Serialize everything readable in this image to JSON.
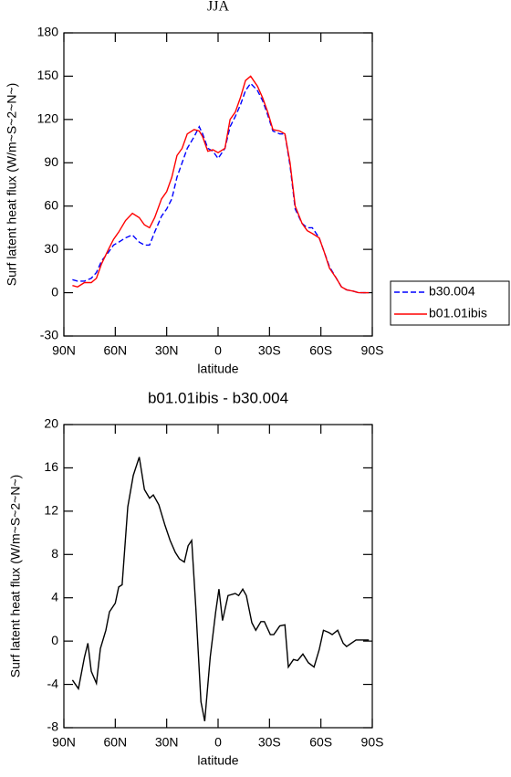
{
  "chart_data": [
    {
      "type": "line",
      "title": "JJA",
      "xlabel": "latitude",
      "ylabel": "Surf latent heat flux (W/m~S~2~N~)",
      "xlim": [
        90,
        -90
      ],
      "xticks": [
        {
          "value": 90,
          "label": "90N"
        },
        {
          "value": 60,
          "label": "60N"
        },
        {
          "value": 30,
          "label": "30N"
        },
        0,
        {
          "value": -30,
          "label": "30S"
        },
        {
          "value": -60,
          "label": "60S"
        },
        {
          "value": -90,
          "label": "90S"
        }
      ],
      "ylim": [
        -30,
        180
      ],
      "yticks": [
        -30,
        0,
        30,
        60,
        90,
        120,
        150,
        180
      ],
      "legend": "outside-right",
      "x": [
        85,
        82,
        78,
        74,
        71,
        68,
        64,
        61,
        58,
        54,
        50,
        46,
        43,
        40,
        37,
        33,
        30,
        27,
        24,
        21,
        18,
        14,
        11,
        9,
        6,
        3,
        0,
        -4,
        -7,
        -10,
        -13,
        -16,
        -19,
        -23,
        -26,
        -29,
        -32,
        -36,
        -39,
        -42,
        -45,
        -49,
        -52,
        -55,
        -59,
        -62,
        -65,
        -69,
        -72,
        -75,
        -79,
        -82,
        -86,
        -88
      ],
      "series": [
        {
          "name": "b30.004",
          "color": "#0000ff",
          "dash": "dashed",
          "values": [
            9,
            8,
            8,
            10,
            14,
            22,
            28,
            33,
            35,
            38,
            40,
            35,
            33,
            33,
            42,
            53,
            58,
            65,
            80,
            90,
            100,
            108,
            115,
            110,
            100,
            98,
            93,
            100,
            115,
            122,
            130,
            140,
            145,
            140,
            133,
            123,
            112,
            110,
            110,
            88,
            58,
            48,
            45,
            45,
            38,
            28,
            18,
            10,
            4,
            2,
            1,
            0,
            0,
            0
          ]
        },
        {
          "name": "b01.01ibis",
          "color": "#ff0000",
          "dash": "solid",
          "values": [
            5,
            4,
            7,
            7,
            10,
            20,
            30,
            37,
            42,
            50,
            55,
            52,
            47,
            45,
            52,
            65,
            70,
            80,
            95,
            100,
            110,
            113,
            112,
            108,
            98,
            99,
            97,
            100,
            120,
            125,
            135,
            147,
            150,
            143,
            135,
            125,
            113,
            112,
            110,
            90,
            60,
            48,
            43,
            41,
            38,
            28,
            17,
            10,
            4,
            2,
            1,
            0,
            0,
            0
          ]
        }
      ]
    },
    {
      "type": "line",
      "title": "b01.01ibis - b30.004",
      "xlabel": "latitude",
      "ylabel": "Surf latent heat flux (W/m~S~2~N~)",
      "xlim": [
        90,
        -90
      ],
      "xticks": [
        {
          "value": 90,
          "label": "90N"
        },
        {
          "value": 60,
          "label": "60N"
        },
        {
          "value": 30,
          "label": "30N"
        },
        0,
        {
          "value": -30,
          "label": "30S"
        },
        {
          "value": -60,
          "label": "60S"
        },
        {
          "value": -90,
          "label": "90S"
        }
      ],
      "ylim": [
        -8,
        20
      ],
      "yticks": [
        -8,
        -4,
        0,
        4,
        8,
        12,
        16,
        20
      ],
      "x": [
        85,
        81.5,
        78,
        76,
        74,
        71,
        68.7,
        65.5,
        63.4,
        60,
        58,
        56,
        52.7,
        49.5,
        46,
        43,
        40,
        37.8,
        34.6,
        31,
        28,
        25,
        22.6,
        19.7,
        17.5,
        15.4,
        13,
        10,
        7.8,
        4.6,
        1.4,
        -0.5,
        -2.6,
        -5.8,
        -10,
        -12,
        -14.4,
        -16.5,
        -19.7,
        -22,
        -25,
        -27,
        -30.5,
        -32.5,
        -36,
        -39,
        -41,
        -44,
        -46.4,
        -49.5,
        -52.7,
        -56,
        -59,
        -61.5,
        -64.5,
        -66.6,
        -69.8,
        -73,
        -75,
        -80.5,
        -83.5,
        -88
      ],
      "series": [
        {
          "color": "#000000",
          "values": [
            -3.6,
            -4.4,
            -1.5,
            -0.2,
            -2.8,
            -3.9,
            -0.7,
            1,
            2.7,
            3.5,
            5,
            5.2,
            12.4,
            15.3,
            17,
            14,
            13.2,
            13.5,
            12.6,
            10.7,
            9.3,
            8.2,
            7.6,
            7.3,
            8.8,
            9.3,
            3.1,
            -5.6,
            -7.4,
            -1.5,
            2.7,
            4.8,
            1.9,
            4.2,
            4.4,
            4.2,
            4.8,
            4.2,
            1.7,
            1,
            1.8,
            1.8,
            0.6,
            0.6,
            1.4,
            1.5,
            -2.4,
            -1.7,
            -1.8,
            -1.2,
            -2,
            -2.4,
            -0.8,
            1,
            0.8,
            0.6,
            1,
            -0.2,
            -0.5,
            0.1,
            0.1,
            0.1
          ]
        }
      ]
    }
  ]
}
